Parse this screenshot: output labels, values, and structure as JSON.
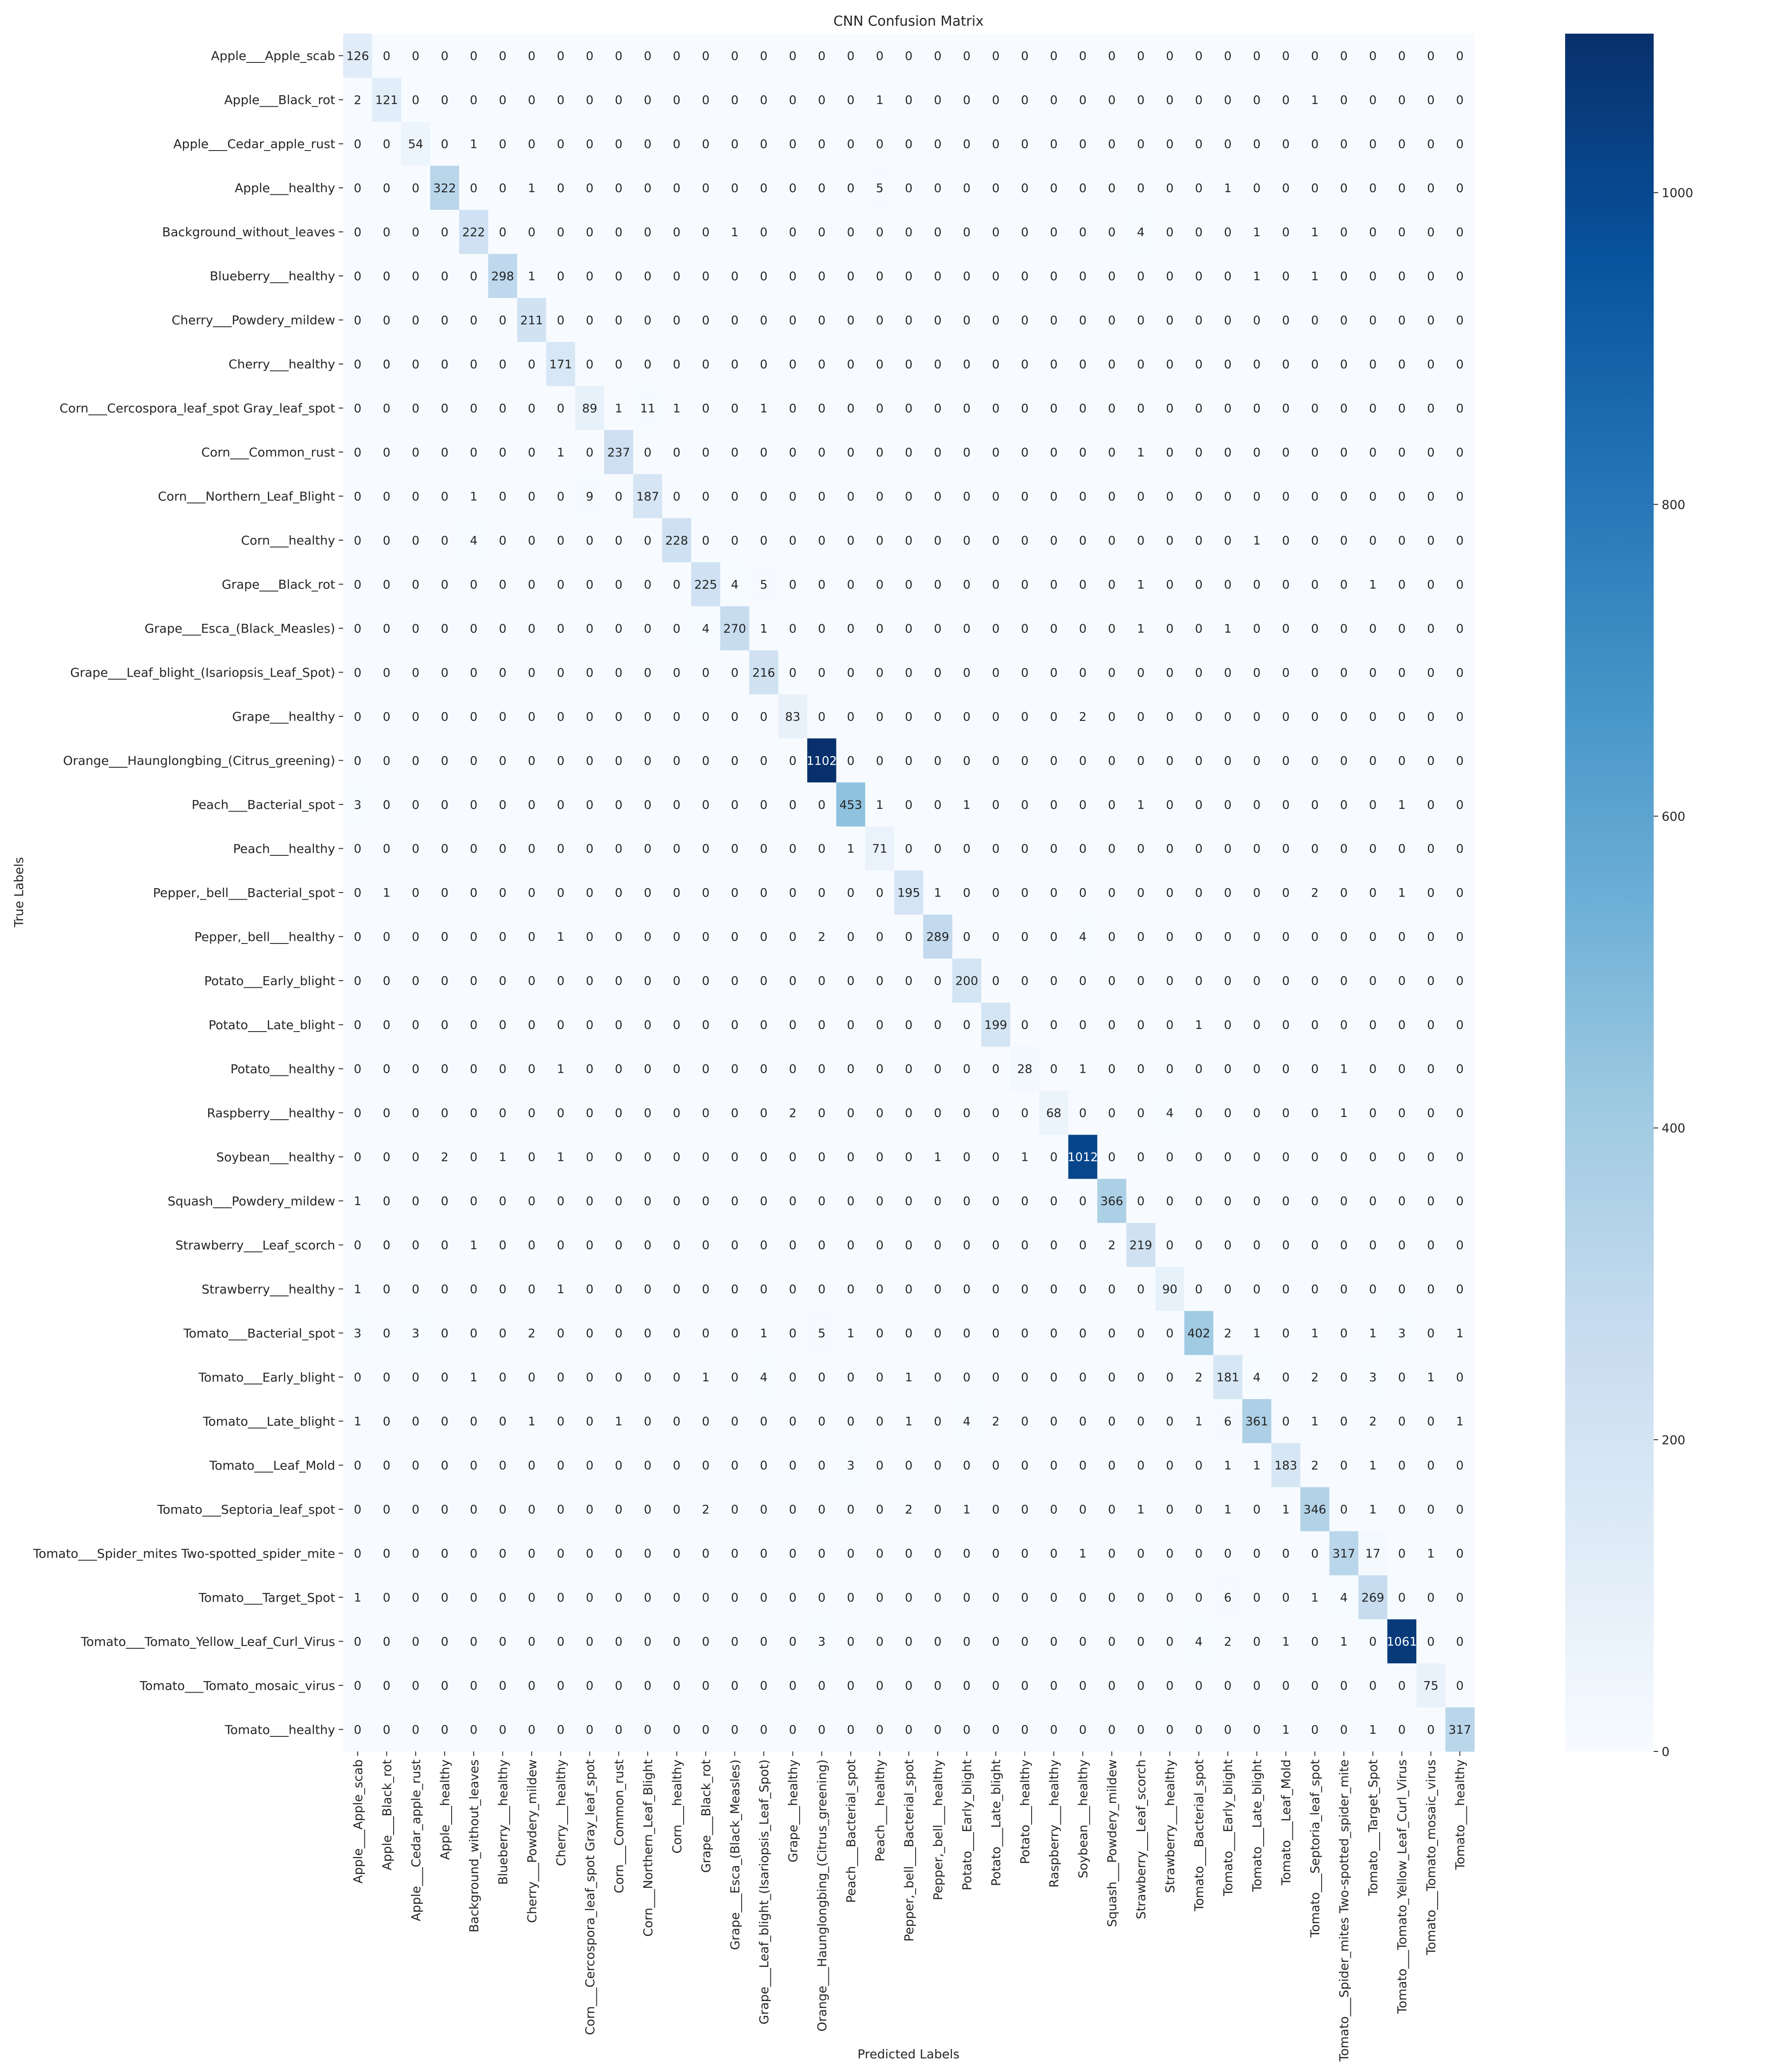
{
  "chart_data": {
    "type": "heatmap",
    "title": "CNN Confusion Matrix",
    "xlabel": "Predicted Labels",
    "ylabel": "True Labels",
    "labels": [
      "Apple___Apple_scab",
      "Apple___Black_rot",
      "Apple___Cedar_apple_rust",
      "Apple___healthy",
      "Background_without_leaves",
      "Blueberry___healthy",
      "Cherry___Powdery_mildew",
      "Cherry___healthy",
      "Corn___Cercospora_leaf_spot Gray_leaf_spot",
      "Corn___Common_rust",
      "Corn___Northern_Leaf_Blight",
      "Corn___healthy",
      "Grape___Black_rot",
      "Grape___Esca_(Black_Measles)",
      "Grape___Leaf_blight_(Isariopsis_Leaf_Spot)",
      "Grape___healthy",
      "Orange___Haunglongbing_(Citrus_greening)",
      "Peach___Bacterial_spot",
      "Peach___healthy",
      "Pepper,_bell___Bacterial_spot",
      "Pepper,_bell___healthy",
      "Potato___Early_blight",
      "Potato___Late_blight",
      "Potato___healthy",
      "Raspberry___healthy",
      "Soybean___healthy",
      "Squash___Powdery_mildew",
      "Strawberry___Leaf_scorch",
      "Strawberry___healthy",
      "Tomato___Bacterial_spot",
      "Tomato___Early_blight",
      "Tomato___Late_blight",
      "Tomato___Leaf_Mold",
      "Tomato___Septoria_leaf_spot",
      "Tomato___Spider_mites Two-spotted_spider_mite",
      "Tomato___Target_Spot",
      "Tomato___Tomato_Yellow_Leaf_Curl_Virus",
      "Tomato___Tomato_mosaic_virus",
      "Tomato___healthy"
    ],
    "matrix": [
      [
        126,
        0,
        0,
        0,
        0,
        0,
        0,
        0,
        0,
        0,
        0,
        0,
        0,
        0,
        0,
        0,
        0,
        0,
        0,
        0,
        0,
        0,
        0,
        0,
        0,
        0,
        0,
        0,
        0,
        0,
        0,
        0,
        0,
        0,
        0,
        0,
        0,
        0,
        0
      ],
      [
        2,
        121,
        0,
        0,
        0,
        0,
        0,
        0,
        0,
        0,
        0,
        0,
        0,
        0,
        0,
        0,
        0,
        0,
        1,
        0,
        0,
        0,
        0,
        0,
        0,
        0,
        0,
        0,
        0,
        0,
        0,
        0,
        0,
        1,
        0,
        0,
        0,
        0,
        0
      ],
      [
        0,
        0,
        54,
        0,
        1,
        0,
        0,
        0,
        0,
        0,
        0,
        0,
        0,
        0,
        0,
        0,
        0,
        0,
        0,
        0,
        0,
        0,
        0,
        0,
        0,
        0,
        0,
        0,
        0,
        0,
        0,
        0,
        0,
        0,
        0,
        0,
        0,
        0,
        0
      ],
      [
        0,
        0,
        0,
        322,
        0,
        0,
        1,
        0,
        0,
        0,
        0,
        0,
        0,
        0,
        0,
        0,
        0,
        0,
        5,
        0,
        0,
        0,
        0,
        0,
        0,
        0,
        0,
        0,
        0,
        0,
        1,
        0,
        0,
        0,
        0,
        0,
        0,
        0,
        0
      ],
      [
        0,
        0,
        0,
        0,
        222,
        0,
        0,
        0,
        0,
        0,
        0,
        0,
        0,
        1,
        0,
        0,
        0,
        0,
        0,
        0,
        0,
        0,
        0,
        0,
        0,
        0,
        0,
        4,
        0,
        0,
        0,
        1,
        0,
        1,
        0,
        0,
        0,
        0,
        0
      ],
      [
        0,
        0,
        0,
        0,
        0,
        298,
        1,
        0,
        0,
        0,
        0,
        0,
        0,
        0,
        0,
        0,
        0,
        0,
        0,
        0,
        0,
        0,
        0,
        0,
        0,
        0,
        0,
        0,
        0,
        0,
        0,
        1,
        0,
        1,
        0,
        0,
        0,
        0,
        0
      ],
      [
        0,
        0,
        0,
        0,
        0,
        0,
        211,
        0,
        0,
        0,
        0,
        0,
        0,
        0,
        0,
        0,
        0,
        0,
        0,
        0,
        0,
        0,
        0,
        0,
        0,
        0,
        0,
        0,
        0,
        0,
        0,
        0,
        0,
        0,
        0,
        0,
        0,
        0,
        0
      ],
      [
        0,
        0,
        0,
        0,
        0,
        0,
        0,
        171,
        0,
        0,
        0,
        0,
        0,
        0,
        0,
        0,
        0,
        0,
        0,
        0,
        0,
        0,
        0,
        0,
        0,
        0,
        0,
        0,
        0,
        0,
        0,
        0,
        0,
        0,
        0,
        0,
        0,
        0,
        0
      ],
      [
        0,
        0,
        0,
        0,
        0,
        0,
        0,
        0,
        89,
        1,
        11,
        1,
        0,
        0,
        1,
        0,
        0,
        0,
        0,
        0,
        0,
        0,
        0,
        0,
        0,
        0,
        0,
        0,
        0,
        0,
        0,
        0,
        0,
        0,
        0,
        0,
        0,
        0,
        0
      ],
      [
        0,
        0,
        0,
        0,
        0,
        0,
        0,
        1,
        0,
        237,
        0,
        0,
        0,
        0,
        0,
        0,
        0,
        0,
        0,
        0,
        0,
        0,
        0,
        0,
        0,
        0,
        0,
        1,
        0,
        0,
        0,
        0,
        0,
        0,
        0,
        0,
        0,
        0,
        0
      ],
      [
        0,
        0,
        0,
        0,
        1,
        0,
        0,
        0,
        9,
        0,
        187,
        0,
        0,
        0,
        0,
        0,
        0,
        0,
        0,
        0,
        0,
        0,
        0,
        0,
        0,
        0,
        0,
        0,
        0,
        0,
        0,
        0,
        0,
        0,
        0,
        0,
        0,
        0,
        0
      ],
      [
        0,
        0,
        0,
        0,
        4,
        0,
        0,
        0,
        0,
        0,
        0,
        228,
        0,
        0,
        0,
        0,
        0,
        0,
        0,
        0,
        0,
        0,
        0,
        0,
        0,
        0,
        0,
        0,
        0,
        0,
        0,
        1,
        0,
        0,
        0,
        0,
        0,
        0,
        0
      ],
      [
        0,
        0,
        0,
        0,
        0,
        0,
        0,
        0,
        0,
        0,
        0,
        0,
        225,
        4,
        5,
        0,
        0,
        0,
        0,
        0,
        0,
        0,
        0,
        0,
        0,
        0,
        0,
        1,
        0,
        0,
        0,
        0,
        0,
        0,
        0,
        1,
        0,
        0,
        0
      ],
      [
        0,
        0,
        0,
        0,
        0,
        0,
        0,
        0,
        0,
        0,
        0,
        0,
        4,
        270,
        1,
        0,
        0,
        0,
        0,
        0,
        0,
        0,
        0,
        0,
        0,
        0,
        0,
        1,
        0,
        0,
        1,
        0,
        0,
        0,
        0,
        0,
        0,
        0,
        0
      ],
      [
        0,
        0,
        0,
        0,
        0,
        0,
        0,
        0,
        0,
        0,
        0,
        0,
        0,
        0,
        216,
        0,
        0,
        0,
        0,
        0,
        0,
        0,
        0,
        0,
        0,
        0,
        0,
        0,
        0,
        0,
        0,
        0,
        0,
        0,
        0,
        0,
        0,
        0,
        0
      ],
      [
        0,
        0,
        0,
        0,
        0,
        0,
        0,
        0,
        0,
        0,
        0,
        0,
        0,
        0,
        0,
        83,
        0,
        0,
        0,
        0,
        0,
        0,
        0,
        0,
        0,
        2,
        0,
        0,
        0,
        0,
        0,
        0,
        0,
        0,
        0,
        0,
        0,
        0,
        0
      ],
      [
        0,
        0,
        0,
        0,
        0,
        0,
        0,
        0,
        0,
        0,
        0,
        0,
        0,
        0,
        0,
        0,
        1102,
        0,
        0,
        0,
        0,
        0,
        0,
        0,
        0,
        0,
        0,
        0,
        0,
        0,
        0,
        0,
        0,
        0,
        0,
        0,
        0,
        0,
        0
      ],
      [
        3,
        0,
        0,
        0,
        0,
        0,
        0,
        0,
        0,
        0,
        0,
        0,
        0,
        0,
        0,
        0,
        0,
        453,
        1,
        0,
        0,
        1,
        0,
        0,
        0,
        0,
        0,
        1,
        0,
        0,
        0,
        0,
        0,
        0,
        0,
        0,
        1,
        0,
        0
      ],
      [
        0,
        0,
        0,
        0,
        0,
        0,
        0,
        0,
        0,
        0,
        0,
        0,
        0,
        0,
        0,
        0,
        0,
        1,
        71,
        0,
        0,
        0,
        0,
        0,
        0,
        0,
        0,
        0,
        0,
        0,
        0,
        0,
        0,
        0,
        0,
        0,
        0,
        0,
        0
      ],
      [
        0,
        1,
        0,
        0,
        0,
        0,
        0,
        0,
        0,
        0,
        0,
        0,
        0,
        0,
        0,
        0,
        0,
        0,
        0,
        195,
        1,
        0,
        0,
        0,
        0,
        0,
        0,
        0,
        0,
        0,
        0,
        0,
        0,
        2,
        0,
        0,
        1,
        0,
        0
      ],
      [
        0,
        0,
        0,
        0,
        0,
        0,
        0,
        1,
        0,
        0,
        0,
        0,
        0,
        0,
        0,
        0,
        2,
        0,
        0,
        0,
        289,
        0,
        0,
        0,
        0,
        4,
        0,
        0,
        0,
        0,
        0,
        0,
        0,
        0,
        0,
        0,
        0,
        0,
        0
      ],
      [
        0,
        0,
        0,
        0,
        0,
        0,
        0,
        0,
        0,
        0,
        0,
        0,
        0,
        0,
        0,
        0,
        0,
        0,
        0,
        0,
        0,
        200,
        0,
        0,
        0,
        0,
        0,
        0,
        0,
        0,
        0,
        0,
        0,
        0,
        0,
        0,
        0,
        0,
        0
      ],
      [
        0,
        0,
        0,
        0,
        0,
        0,
        0,
        0,
        0,
        0,
        0,
        0,
        0,
        0,
        0,
        0,
        0,
        0,
        0,
        0,
        0,
        0,
        199,
        0,
        0,
        0,
        0,
        0,
        0,
        1,
        0,
        0,
        0,
        0,
        0,
        0,
        0,
        0,
        0
      ],
      [
        0,
        0,
        0,
        0,
        0,
        0,
        0,
        1,
        0,
        0,
        0,
        0,
        0,
        0,
        0,
        0,
        0,
        0,
        0,
        0,
        0,
        0,
        0,
        28,
        0,
        1,
        0,
        0,
        0,
        0,
        0,
        0,
        0,
        0,
        1,
        0,
        0,
        0,
        0
      ],
      [
        0,
        0,
        0,
        0,
        0,
        0,
        0,
        0,
        0,
        0,
        0,
        0,
        0,
        0,
        0,
        2,
        0,
        0,
        0,
        0,
        0,
        0,
        0,
        0,
        68,
        0,
        0,
        0,
        4,
        0,
        0,
        0,
        0,
        0,
        1,
        0,
        0,
        0,
        0
      ],
      [
        0,
        0,
        0,
        2,
        0,
        1,
        0,
        1,
        0,
        0,
        0,
        0,
        0,
        0,
        0,
        0,
        0,
        0,
        0,
        0,
        1,
        0,
        0,
        1,
        0,
        1012,
        0,
        0,
        0,
        0,
        0,
        0,
        0,
        0,
        0,
        0,
        0,
        0,
        0
      ],
      [
        1,
        0,
        0,
        0,
        0,
        0,
        0,
        0,
        0,
        0,
        0,
        0,
        0,
        0,
        0,
        0,
        0,
        0,
        0,
        0,
        0,
        0,
        0,
        0,
        0,
        0,
        366,
        0,
        0,
        0,
        0,
        0,
        0,
        0,
        0,
        0,
        0,
        0,
        0
      ],
      [
        0,
        0,
        0,
        0,
        1,
        0,
        0,
        0,
        0,
        0,
        0,
        0,
        0,
        0,
        0,
        0,
        0,
        0,
        0,
        0,
        0,
        0,
        0,
        0,
        0,
        0,
        2,
        219,
        0,
        0,
        0,
        0,
        0,
        0,
        0,
        0,
        0,
        0,
        0
      ],
      [
        1,
        0,
        0,
        0,
        0,
        0,
        0,
        1,
        0,
        0,
        0,
        0,
        0,
        0,
        0,
        0,
        0,
        0,
        0,
        0,
        0,
        0,
        0,
        0,
        0,
        0,
        0,
        0,
        90,
        0,
        0,
        0,
        0,
        0,
        0,
        0,
        0,
        0,
        0
      ],
      [
        3,
        0,
        3,
        0,
        0,
        0,
        2,
        0,
        0,
        0,
        0,
        0,
        0,
        0,
        1,
        0,
        5,
        1,
        0,
        0,
        0,
        0,
        0,
        0,
        0,
        0,
        0,
        0,
        0,
        402,
        2,
        1,
        0,
        1,
        0,
        1,
        3,
        0,
        1
      ],
      [
        0,
        0,
        0,
        0,
        1,
        0,
        0,
        0,
        0,
        0,
        0,
        0,
        1,
        0,
        4,
        0,
        0,
        0,
        0,
        1,
        0,
        0,
        0,
        0,
        0,
        0,
        0,
        0,
        0,
        2,
        181,
        4,
        0,
        2,
        0,
        3,
        0,
        1,
        0
      ],
      [
        1,
        0,
        0,
        0,
        0,
        0,
        1,
        0,
        0,
        1,
        0,
        0,
        0,
        0,
        0,
        0,
        0,
        0,
        0,
        1,
        0,
        4,
        2,
        0,
        0,
        0,
        0,
        0,
        0,
        1,
        6,
        361,
        0,
        1,
        0,
        2,
        0,
        0,
        1
      ],
      [
        0,
        0,
        0,
        0,
        0,
        0,
        0,
        0,
        0,
        0,
        0,
        0,
        0,
        0,
        0,
        0,
        0,
        3,
        0,
        0,
        0,
        0,
        0,
        0,
        0,
        0,
        0,
        0,
        0,
        0,
        1,
        1,
        183,
        2,
        0,
        1,
        0,
        0,
        0
      ],
      [
        0,
        0,
        0,
        0,
        0,
        0,
        0,
        0,
        0,
        0,
        0,
        0,
        2,
        0,
        0,
        0,
        0,
        0,
        0,
        2,
        0,
        1,
        0,
        0,
        0,
        0,
        0,
        1,
        0,
        0,
        1,
        0,
        1,
        346,
        0,
        1,
        0,
        0,
        0
      ],
      [
        0,
        0,
        0,
        0,
        0,
        0,
        0,
        0,
        0,
        0,
        0,
        0,
        0,
        0,
        0,
        0,
        0,
        0,
        0,
        0,
        0,
        0,
        0,
        0,
        0,
        1,
        0,
        0,
        0,
        0,
        0,
        0,
        0,
        0,
        317,
        17,
        0,
        1,
        0
      ],
      [
        1,
        0,
        0,
        0,
        0,
        0,
        0,
        0,
        0,
        0,
        0,
        0,
        0,
        0,
        0,
        0,
        0,
        0,
        0,
        0,
        0,
        0,
        0,
        0,
        0,
        0,
        0,
        0,
        0,
        0,
        6,
        0,
        0,
        1,
        4,
        269,
        0,
        0,
        0
      ],
      [
        0,
        0,
        0,
        0,
        0,
        0,
        0,
        0,
        0,
        0,
        0,
        0,
        0,
        0,
        0,
        0,
        3,
        0,
        0,
        0,
        0,
        0,
        0,
        0,
        0,
        0,
        0,
        0,
        0,
        4,
        2,
        0,
        1,
        0,
        1,
        0,
        1061,
        0,
        0
      ],
      [
        0,
        0,
        0,
        0,
        0,
        0,
        0,
        0,
        0,
        0,
        0,
        0,
        0,
        0,
        0,
        0,
        0,
        0,
        0,
        0,
        0,
        0,
        0,
        0,
        0,
        0,
        0,
        0,
        0,
        0,
        0,
        0,
        0,
        0,
        0,
        0,
        0,
        75,
        0
      ],
      [
        0,
        0,
        0,
        0,
        0,
        0,
        0,
        0,
        0,
        0,
        0,
        0,
        0,
        0,
        0,
        0,
        0,
        0,
        0,
        0,
        0,
        0,
        0,
        0,
        0,
        0,
        0,
        0,
        0,
        0,
        0,
        0,
        1,
        0,
        0,
        1,
        0,
        0,
        317
      ]
    ],
    "colorbar": {
      "min": 0,
      "max": 1102,
      "ticks": [
        0,
        200,
        400,
        600,
        800,
        1000
      ]
    },
    "colormap": "Blues",
    "colors": {
      "low": "#f7fbff",
      "high": "#08306b",
      "text_dark": "#262626",
      "text_light": "#ffffff"
    }
  }
}
